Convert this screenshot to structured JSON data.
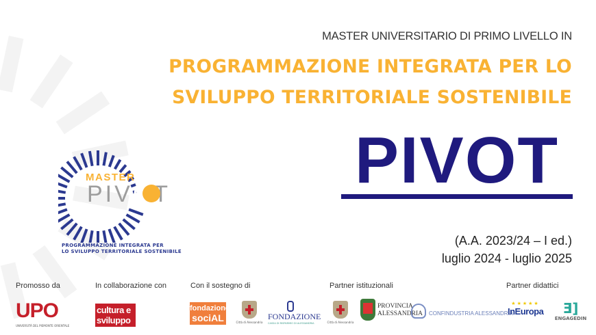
{
  "header": {
    "subtitle": "MASTER UNIVERSITARIO DI PRIMO LIVELLO IN",
    "title_line1": "PROGRAMMAZIONE INTEGRATA PER LO",
    "title_line2": "SVILUPPO TERRITORIALE SOSTENIBILE",
    "acronym": "PIVOT"
  },
  "dates": {
    "academic_year": "(A.A. 2023/24 – I ed.)",
    "period": "luglio 2024 - luglio 2025"
  },
  "logo": {
    "word1": "MASTER",
    "word2": "PIVOT",
    "caption_line1": "PROGRAMMAZIONE INTEGRATA PER",
    "caption_line2": "LO SVILUPPO TERRITORIALE SOSTENIBILE"
  },
  "colors": {
    "orange": "#f9b233",
    "navy": "#1f1a7e",
    "grey": "#9d9d9d",
    "red": "#c51f2a",
    "logo_blue": "#2b3990"
  },
  "sponsors": {
    "promoted_label": "Promosso da",
    "collab_label": "In collaborazione con",
    "support_label": "Con il sostegno di",
    "institutional_label": "Partner istituzionali",
    "didactic_label": "Partner didattici",
    "upo": {
      "name": "UPO",
      "sub": "UNIVERSITÀ DEL PIEMONTE ORIENTALE"
    },
    "cultura": {
      "line1": "cultura e",
      "line2": "sviluppo"
    },
    "social": {
      "line1": "fondazione",
      "line2": "sociAL"
    },
    "citta": "Città di Alessandria",
    "fondazione": {
      "name": "FONDAZIONE",
      "sub": "CASSA DI RISPARMIO DI ALESSANDRIA"
    },
    "provincia": {
      "line1": "PROVINCIA",
      "line2": "ALESSANDRIA"
    },
    "confindustria": "CONFINDUSTRIA ALESSANDRIA",
    "ineuropa": "InEuropa",
    "engagedin": "ENGAGEDIN"
  }
}
